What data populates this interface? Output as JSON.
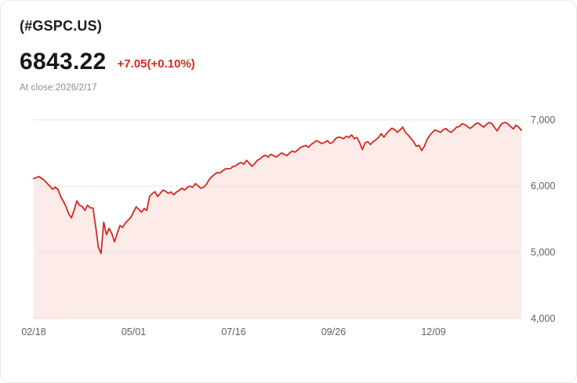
{
  "header": {
    "symbol": "(#GSPC.US)",
    "price": "6843.22",
    "change": "+7.05(+0.10%)",
    "close_label": "At close:2026/2/17"
  },
  "colors": {
    "accent": "#d9271e",
    "change_text": "#d9271e",
    "area_fill": "#fcebe9",
    "grid": "#e5e5e5",
    "axis_text": "#606065"
  },
  "chart_data": {
    "type": "area",
    "title": "",
    "xlabel": "",
    "ylabel": "",
    "ylim": [
      4000,
      7080
    ],
    "grid": true,
    "legend": "none",
    "y_ticks": [
      7000,
      6000,
      5000,
      4000
    ],
    "y_tick_labels": [
      "7,000",
      "6,000",
      "5,000",
      "4,000"
    ],
    "x_tick_labels": [
      "02/18",
      "05/01",
      "07/16",
      "09/26",
      "12/09"
    ],
    "x_tick_positions": [
      0,
      0.205,
      0.41,
      0.615,
      0.82
    ],
    "values": [
      6115,
      6130,
      6144,
      6118,
      6086,
      6040,
      5998,
      5955,
      5983,
      5954,
      5842,
      5770,
      5693,
      5580,
      5521,
      5638,
      5776,
      5712,
      5693,
      5633,
      5713,
      5671,
      5670,
      5396,
      5074,
      4983,
      5456,
      5268,
      5363,
      5283,
      5160,
      5287,
      5406,
      5376,
      5443,
      5485,
      5525,
      5604,
      5687,
      5650,
      5606,
      5663,
      5635,
      5844,
      5887,
      5917,
      5842,
      5893,
      5940,
      5921,
      5889,
      5912,
      5870,
      5912,
      5936,
      5970,
      5940,
      5982,
      6000,
      5983,
      6039,
      6005,
      5968,
      5982,
      6022,
      6092,
      6141,
      6173,
      6205,
      6198,
      6227,
      6259,
      6263,
      6264,
      6297,
      6306,
      6340,
      6358,
      6330,
      6390,
      6345,
      6299,
      6340,
      6389,
      6411,
      6449,
      6466,
      6439,
      6481,
      6460,
      6440,
      6469,
      6502,
      6481,
      6460,
      6501,
      6532,
      6512,
      6547,
      6584,
      6600,
      6615,
      6587,
      6632,
      6656,
      6688,
      6664,
      6643,
      6661,
      6688,
      6644,
      6661,
      6715,
      6740,
      6735,
      6714,
      6753,
      6735,
      6774,
      6715,
      6735,
      6655,
      6553,
      6654,
      6672,
      6629,
      6671,
      6699,
      6735,
      6792,
      6738,
      6796,
      6840,
      6875,
      6851,
      6812,
      6851,
      6890,
      6812,
      6771,
      6721,
      6672,
      6602,
      6617,
      6538,
      6602,
      6705,
      6765,
      6812,
      6849,
      6829,
      6812,
      6850,
      6870,
      6830,
      6812,
      6850,
      6890,
      6901,
      6940,
      6928,
      6901,
      6870,
      6901,
      6940,
      6952,
      6920,
      6890,
      6930,
      6960,
      6945,
      6890,
      6835,
      6905,
      6950,
      6962,
      6940,
      6900,
      6863,
      6920,
      6890,
      6843.22
    ]
  }
}
